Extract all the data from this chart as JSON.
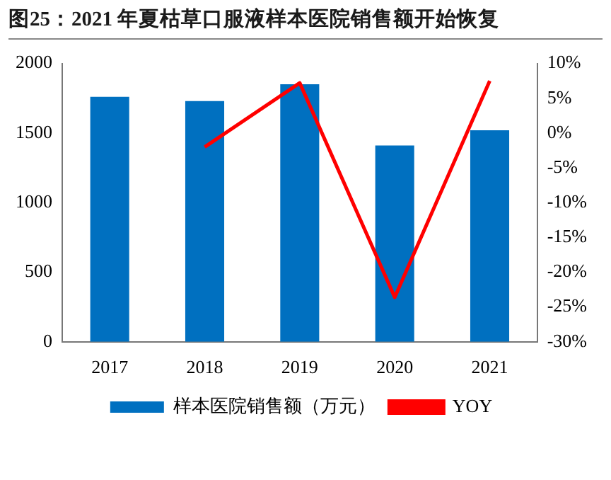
{
  "chart_data": {
    "type": "bar",
    "title": "图25：2021 年夏枯草口服液样本医院销售额开始恢复",
    "categories": [
      "2017",
      "2018",
      "2019",
      "2020",
      "2021"
    ],
    "series": [
      {
        "name": "样本医院销售额（万元）",
        "color": "#0070c0",
        "values": [
          1760,
          1730,
          1850,
          1410,
          1520
        ]
      },
      {
        "name": "YOY",
        "type": "line",
        "axis": "y2",
        "color": "#ff0000",
        "values": [
          null,
          -2.0,
          7.2,
          -23.6,
          7.5
        ]
      }
    ],
    "ylim": [
      0,
      2000
    ],
    "yticks": [
      0,
      500,
      1000,
      1500,
      2000
    ],
    "y2lim": [
      -30,
      10
    ],
    "y2ticks": [
      {
        "value": -30,
        "label": "-30%"
      },
      {
        "value": -25,
        "label": "-25%"
      },
      {
        "value": -20,
        "label": "-20%"
      },
      {
        "value": -15,
        "label": "-15%"
      },
      {
        "value": -10,
        "label": "-10%"
      },
      {
        "value": -5,
        "label": "-5%"
      },
      {
        "value": 0,
        "label": "0%"
      },
      {
        "value": 5,
        "label": "5%"
      },
      {
        "value": 10,
        "label": "10%"
      }
    ],
    "grid": false,
    "legend": "bottom",
    "marker": "none"
  }
}
